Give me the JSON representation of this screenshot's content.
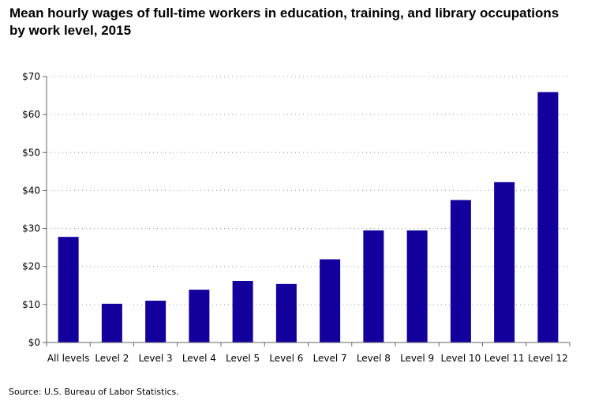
{
  "chart_data": {
    "type": "bar",
    "title": "Mean hourly wages of full-time workers in education, training, and library occupations by work level, 2015",
    "xlabel": "",
    "ylabel": "",
    "categories": [
      "All levels",
      "Level 2",
      "Level 3",
      "Level 4",
      "Level 5",
      "Level 6",
      "Level 7",
      "Level 8",
      "Level 9",
      "Level 10",
      "Level 11",
      "Level 12"
    ],
    "values": [
      27.8,
      10.2,
      11.0,
      13.9,
      16.2,
      15.4,
      21.9,
      29.5,
      29.5,
      37.5,
      42.2,
      65.9
    ],
    "ylim": [
      0,
      70
    ],
    "yticks": [
      0,
      10,
      20,
      30,
      40,
      50,
      60,
      70
    ],
    "ytick_labels": [
      "$0",
      "$10",
      "$20",
      "$30",
      "$40",
      "$50",
      "$60",
      "$70"
    ],
    "grid": "horizontal-dotted",
    "bar_color": "#13009c",
    "source": "Source: U.S. Bureau of Labor Statistics."
  }
}
